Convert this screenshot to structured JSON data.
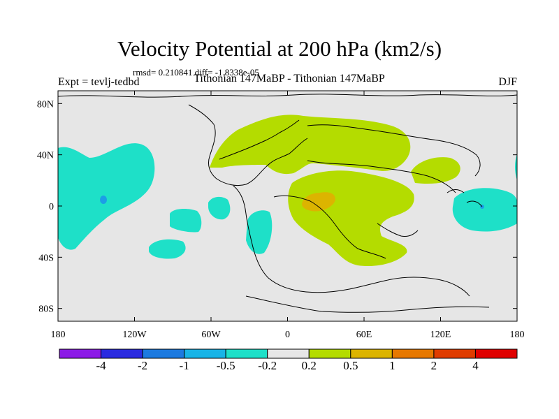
{
  "title": "Velocity Potential at 200 hPa (km2/s)",
  "stats": "rmsd= 0.210841 diff= -1.8338e-05",
  "left_label": "Expt = tevlj-tedbd",
  "center_label": "Tithonian 147MaBP - Tithonian 147MaBP",
  "right_label": "DJF",
  "map": {
    "lat_ticks": [
      "80N",
      "40N",
      "0",
      "40S",
      "80S"
    ],
    "lon_ticks": [
      "180",
      "120W",
      "60W",
      "0",
      "60E",
      "120E",
      "180"
    ],
    "lon_values": [
      -180,
      -120,
      -60,
      0,
      60,
      120,
      180
    ],
    "lat_values": [
      80,
      40,
      0,
      -40,
      -80
    ],
    "background_color": "#e6e6e6"
  },
  "colorbar": {
    "levels": [
      "-4",
      "-2",
      "-1",
      "-0.5",
      "-0.2",
      "0.2",
      "0.5",
      "1",
      "2",
      "4"
    ],
    "colors": [
      "#8c1ae6",
      "#2a2ae0",
      "#1c7ae0",
      "#18b4e6",
      "#1ee0c8",
      "#e6e6e6",
      "#b4dc00",
      "#dcb400",
      "#e67800",
      "#e03c00",
      "#e00000"
    ]
  },
  "colors": {
    "negative_fill": "#1ee0c8",
    "negative_core": "#1c9ee6",
    "positive_fill": "#b4dc00",
    "positive_core": "#dcb400",
    "coastline": "#000000"
  }
}
